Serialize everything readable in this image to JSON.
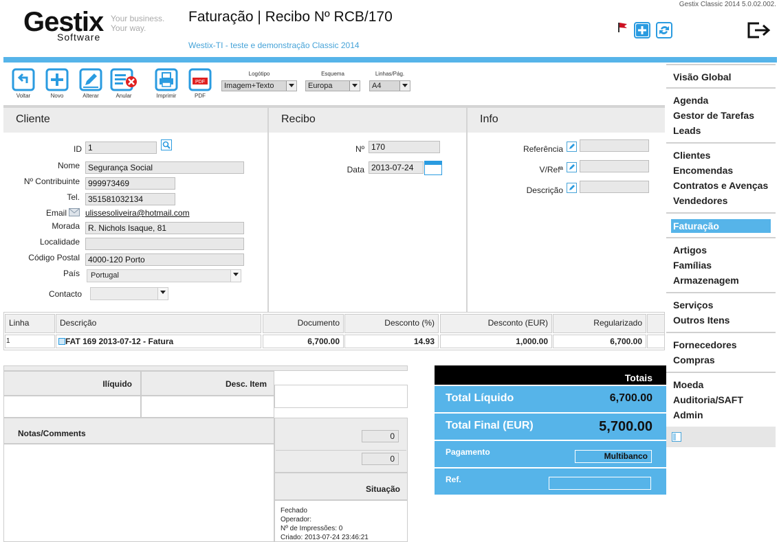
{
  "app": {
    "version": "Gestix Classic 2014 5.0.02.002.",
    "logo_main": "Gestix",
    "logo_software": "Software",
    "logo_tagline_1": "Your business.",
    "logo_tagline_2": "Your way.",
    "title": "Faturação | Recibo Nº RCB/170",
    "subtitle": "Westix-TI - teste e demonstração Classic 2014"
  },
  "colors": {
    "accent": "#56b4e9",
    "dark": "#000000",
    "flag": "#cc1122"
  },
  "toolbar": {
    "buttons": [
      {
        "label": "Voltar",
        "icon": "back-arrow-icon"
      },
      {
        "label": "Novo",
        "icon": "plus-icon"
      },
      {
        "label": "Alterar",
        "icon": "pencil-icon"
      },
      {
        "label": "Anular",
        "icon": "cancel-document-icon"
      },
      {
        "label": "Imprimir",
        "icon": "printer-icon"
      },
      {
        "label": "PDF",
        "icon": "pdf-icon"
      }
    ],
    "selects": [
      {
        "label": "Logótipo",
        "value": "Imagem+Texto"
      },
      {
        "label": "Esquema",
        "value": "Europa"
      },
      {
        "label": "Linhas/Pág.",
        "value": "A4"
      }
    ]
  },
  "cliente": {
    "heading": "Cliente",
    "id_label": "ID",
    "id": "1",
    "nome_label": "Nome",
    "nome": "Segurança Social",
    "nif_label": "Nº Contribuinte",
    "nif": "999973469",
    "tel_label": "Tel.",
    "tel": "351581032134",
    "email_label": "Email",
    "email": "ulissesoliveira@hotmail.com",
    "morada_label": "Morada",
    "morada": "R. Nichols Isaque, 81",
    "localidade_label": "Localidade",
    "localidade": "",
    "cp_label": "Código Postal",
    "cp": "4000-120 Porto",
    "pais_label": "País",
    "pais": "Portugal",
    "contacto_label": "Contacto",
    "contacto": ""
  },
  "recibo": {
    "heading": "Recibo",
    "num_label": "Nº",
    "num": "170",
    "data_label": "Data",
    "data": "2013-07-24"
  },
  "info": {
    "heading": "Info",
    "referencia_label": "Referência",
    "referencia": "",
    "vref_label": "V/Refª",
    "vref": "",
    "descricao_label": "Descrição",
    "descricao": ""
  },
  "lines": {
    "headers": [
      "Linha",
      "Descrição",
      "Documento",
      "Desconto (%)",
      "Desconto (EUR)",
      "Regularizado"
    ],
    "rows": [
      {
        "linha": "1",
        "descricao": "FAT 169 2013-07-12 - Fatura",
        "documento": "6,700.00",
        "desconto_pct": "14.93",
        "desconto_eur": "1,000.00",
        "regularizado": "6,700.00"
      }
    ]
  },
  "summary": {
    "liquido_label": "Ilíquido",
    "desc_item_label": "Desc. Item",
    "notas_label": "Notas/Comments",
    "field_a": "0",
    "field_b": "0",
    "situacao_label": "Situação",
    "situacao_lines": [
      "Fechado",
      "Operador:",
      "Nº de Impressões: 0",
      "Criado: 2013-07-24 23:46:21"
    ]
  },
  "totals": {
    "heading": "Totais",
    "liquido_label": "Total Líquido",
    "liquido": "6,700.00",
    "final_label": "Total Final (EUR)",
    "final": "5,700.00",
    "pagamento_label": "Pagamento",
    "pagamento": "Multibanco",
    "ref_label": "Ref.",
    "ref": ""
  },
  "sidebar": {
    "groups": [
      [
        "Visão Global"
      ],
      [
        "Agenda",
        "Gestor de Tarefas",
        "Leads"
      ],
      [
        "Clientes",
        "Encomendas",
        "Contratos e Avenças",
        "Vendedores"
      ],
      [
        "Faturação"
      ],
      [
        "Artigos",
        "Famílias",
        "Armazenagem"
      ],
      [
        "Serviços",
        "Outros Itens"
      ],
      [
        "Fornecedores",
        "Compras"
      ],
      [
        "Moeda",
        "Auditoria/SAFT",
        "Admin"
      ]
    ]
  }
}
